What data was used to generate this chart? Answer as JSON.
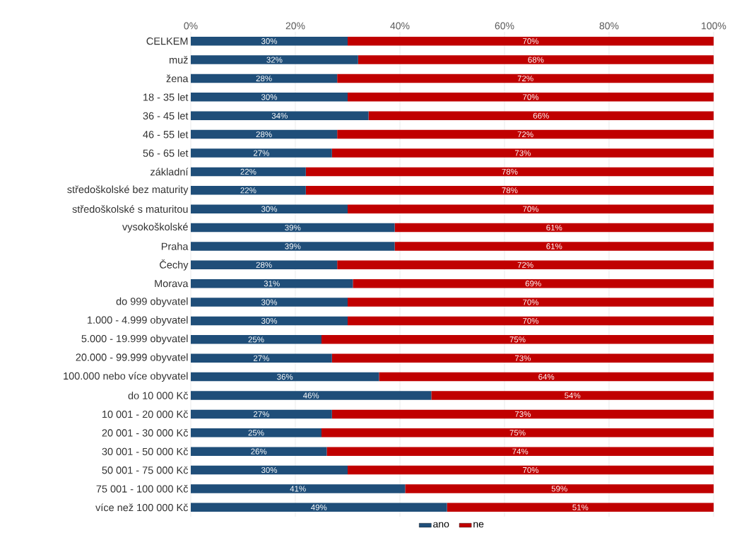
{
  "chart_data": {
    "type": "bar",
    "orientation": "horizontal",
    "stacked": true,
    "categories": [
      "CELKEM",
      "muž",
      "žena",
      "18 - 35 let",
      "36 - 45 let",
      "46 - 55 let",
      "56 - 65 let",
      "základní",
      "středoškolské bez maturity",
      "středoškolské s maturitou",
      "vysokoškolské",
      "Praha",
      "Čechy",
      "Morava",
      "do 999 obyvatel",
      "1.000 - 4.999 obyvatel",
      "5.000 - 19.999 obyvatel",
      "20.000 - 99.999 obyvatel",
      "100.000 nebo více obyvatel",
      "do 10 000 Kč",
      "10 001 - 20 000 Kč",
      "20 001 - 30 000 Kč",
      "30 001 - 50 000 Kč",
      "50 001 - 75 000 Kč",
      "75 001 - 100 000 Kč",
      "více než 100 000 Kč"
    ],
    "series": [
      {
        "name": "ano",
        "color": "#1f4e79",
        "values": [
          30,
          32,
          28,
          30,
          34,
          28,
          27,
          22,
          22,
          30,
          39,
          39,
          28,
          31,
          30,
          30,
          25,
          27,
          36,
          46,
          27,
          25,
          26,
          30,
          41,
          49
        ],
        "value_labels": [
          "30%",
          "32%",
          "28%",
          "30%",
          "34%",
          "28%",
          "27%",
          "22%",
          "22%",
          "30%",
          "39%",
          "39%",
          "28%",
          "31%",
          "30%",
          "30%",
          "25%",
          "27%",
          "36%",
          "46%",
          "27%",
          "25%",
          "26%",
          "30%",
          "41%",
          "49%"
        ]
      },
      {
        "name": "ne",
        "color": "#c00000",
        "values": [
          70,
          68,
          72,
          70,
          66,
          72,
          73,
          78,
          78,
          70,
          61,
          61,
          72,
          69,
          70,
          70,
          75,
          73,
          64,
          54,
          73,
          75,
          74,
          70,
          59,
          51
        ],
        "value_labels": [
          "70%",
          "68%",
          "72%",
          "70%",
          "66%",
          "72%",
          "73%",
          "78%",
          "78%",
          "70%",
          "61%",
          "61%",
          "72%",
          "69%",
          "70%",
          "70%",
          "75%",
          "73%",
          "64%",
          "54%",
          "73%",
          "75%",
          "74%",
          "70%",
          "59%",
          "51%"
        ]
      }
    ],
    "xlim": [
      0,
      100
    ],
    "xticks": [
      {
        "value": 0,
        "label": "0%"
      },
      {
        "value": 20,
        "label": "20%"
      },
      {
        "value": 40,
        "label": "40%"
      },
      {
        "value": 60,
        "label": "60%"
      },
      {
        "value": 80,
        "label": "80%"
      },
      {
        "value": 100,
        "label": "100%"
      }
    ],
    "grid": "x",
    "legend": "bottom"
  }
}
